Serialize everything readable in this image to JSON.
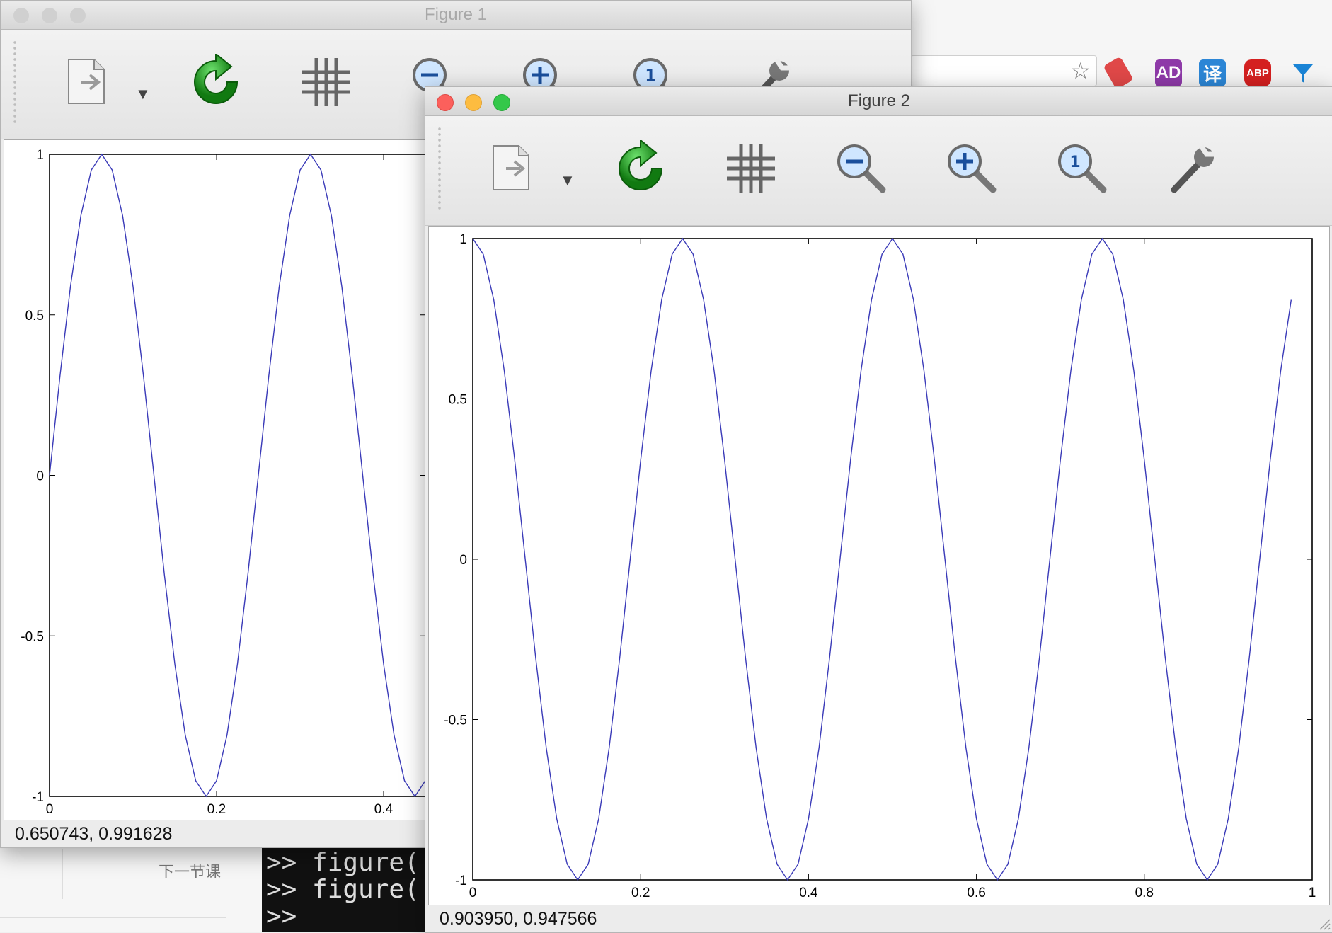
{
  "background": {
    "next_lesson": "下一节课",
    "terminal_lines": [
      ">> figure(",
      ">> figure(",
      ">>"
    ],
    "extensions": [
      {
        "label": "",
        "icon": "eraser-icon",
        "color": "#e04848"
      },
      {
        "label": "AD",
        "icon": "adblock-ad-icon",
        "color": "#8e3aa8"
      },
      {
        "label": "译",
        "icon": "translate-icon",
        "color": "#2c86d6"
      },
      {
        "label": "ABP",
        "icon": "adblock-plus-icon",
        "color": "#d42020"
      },
      {
        "label": "",
        "icon": "funnel-icon",
        "color": "#1a84d6"
      }
    ]
  },
  "toolbar_tools": [
    {
      "name": "save-tool",
      "icon": "export-document-icon"
    },
    {
      "name": "refresh-tool",
      "icon": "green-refresh-icon"
    },
    {
      "name": "grid-tool",
      "icon": "grid-icon"
    },
    {
      "name": "zoom-out-tool",
      "icon": "zoom-out-icon"
    },
    {
      "name": "zoom-in-tool",
      "icon": "zoom-in-icon"
    },
    {
      "name": "zoom-reset-tool",
      "icon": "zoom-reset-icon"
    },
    {
      "name": "settings-tool",
      "icon": "wrench-icon"
    }
  ],
  "colors": {
    "line": "#3a3ab8",
    "close": "#fc605c",
    "minimize": "#fdbc40",
    "zoom": "#34c84a"
  },
  "figure1": {
    "title": "Figure 1",
    "status": "0.650743,  0.991628",
    "chart_data": {
      "type": "line",
      "title": "",
      "xlabel": "",
      "ylabel": "",
      "function": "sin(2*pi*4*x)",
      "xlim": [
        0,
        0.45
      ],
      "ylim": [
        -1,
        1
      ],
      "xticks": [
        0,
        0.2,
        0.4
      ],
      "xtick_labels": [
        "0",
        "0.2",
        "0.4"
      ],
      "yticks": [
        1,
        0.5,
        0,
        -0.5,
        -1
      ],
      "ytick_labels": [
        "1",
        "0.5",
        "0",
        "-0.5",
        "-1"
      ],
      "grid": false,
      "series": [
        {
          "color": "#3a3ab8",
          "x_start": 0,
          "x_end": 0.45,
          "x_step": 0.0125
        }
      ]
    }
  },
  "figure2": {
    "title": "Figure 2",
    "status": "0.903950,  0.947566",
    "chart_data": {
      "type": "line",
      "title": "",
      "xlabel": "",
      "ylabel": "",
      "function": "cos(2*pi*4*x)",
      "xlim": [
        0,
        1
      ],
      "ylim": [
        -1,
        1
      ],
      "xticks": [
        0,
        0.2,
        0.4,
        0.6,
        0.8,
        1
      ],
      "xtick_labels": [
        "0",
        "0.2",
        "0.4",
        "0.6",
        "0.8",
        "1"
      ],
      "yticks": [
        1,
        0.5,
        0,
        -0.5,
        -1
      ],
      "ytick_labels": [
        "1",
        "0.5",
        "0",
        "-0.5",
        "-1"
      ],
      "grid": false,
      "series": [
        {
          "color": "#3a3ab8",
          "x_start": 0,
          "x_end": 0.98,
          "x_step": 0.0125
        }
      ]
    }
  }
}
